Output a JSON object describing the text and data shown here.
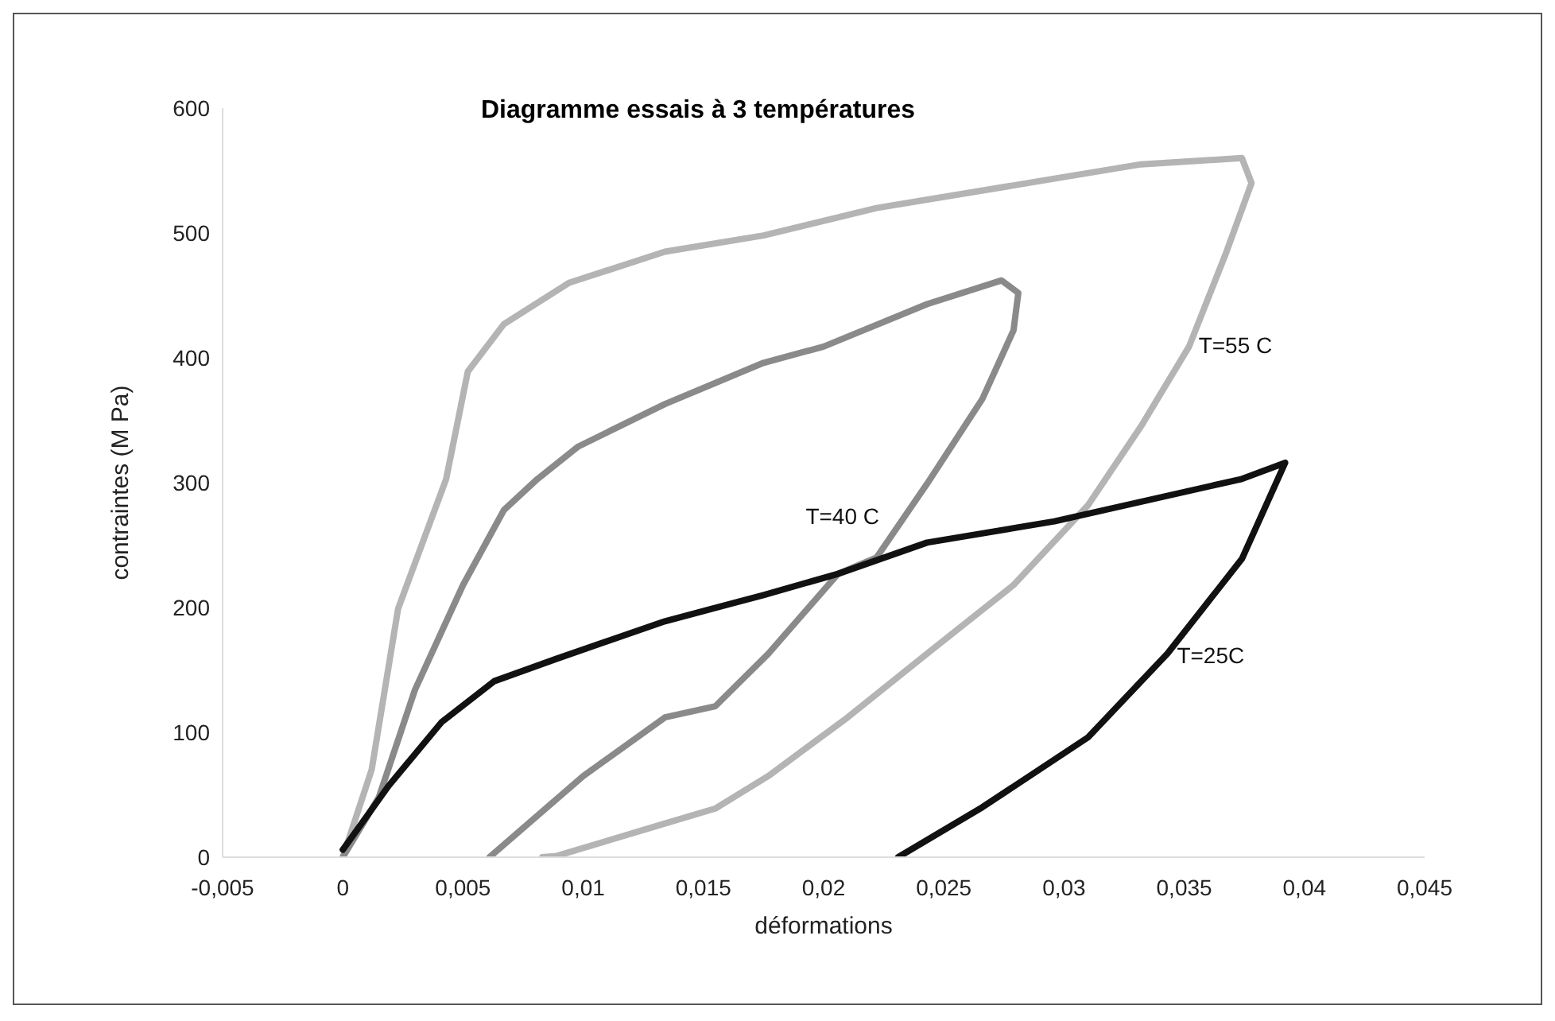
{
  "chart_data": {
    "type": "line",
    "title": "Diagramme essais à 3 températures",
    "xlabel": "déformations",
    "ylabel": "contraintes (M Pa)",
    "xlim": [
      -0.005,
      0.045
    ],
    "xticks": [
      {
        "value": -0.005,
        "label": "-0,005"
      },
      0,
      {
        "value": 0.005,
        "label": "0,005"
      },
      {
        "value": 0.01,
        "label": "0,01"
      },
      {
        "value": 0.015,
        "label": "0,015"
      },
      {
        "value": 0.02,
        "label": "0,02"
      },
      {
        "value": 0.025,
        "label": "0,025"
      },
      {
        "value": 0.03,
        "label": "0,03"
      },
      {
        "value": 0.035,
        "label": "0,035"
      },
      {
        "value": 0.04,
        "label": "0,04"
      },
      {
        "value": 0.045,
        "label": "0,045"
      }
    ],
    "ylim": [
      0,
      600
    ],
    "yticks": [
      0,
      100,
      200,
      300,
      400,
      500,
      600
    ],
    "grid": false,
    "legend": false,
    "marker": "none",
    "line_style": "solid",
    "series": [
      {
        "name": "T=55 C",
        "color": "#b4b4b4",
        "x": [
          0,
          0.0012,
          0.0023,
          0.0043,
          0.0052,
          0.0067,
          0.0094,
          0.0134,
          0.0175,
          0.0222,
          0.0288,
          0.0332,
          0.0374,
          0.0378,
          0.0367,
          0.0352,
          0.0332,
          0.031,
          0.0279,
          0.0243,
          0.021,
          0.0177,
          0.0155,
          0.0134,
          0.0089,
          0.0083
        ],
        "values": [
          0,
          70,
          199,
          303,
          389,
          427,
          460,
          485,
          498,
          520,
          541,
          555,
          560,
          540,
          482,
          409,
          345,
          282,
          218,
          163,
          112,
          65,
          39,
          27,
          1,
          0
        ]
      },
      {
        "name": "T=40 C",
        "color": "#8a8a8a",
        "x": [
          0,
          0.0015,
          0.003,
          0.005,
          0.0067,
          0.0081,
          0.0098,
          0.0134,
          0.0175,
          0.02,
          0.0243,
          0.0274,
          0.0281,
          0.0279,
          0.0266,
          0.0243,
          0.0222,
          0.0206,
          0.0177,
          0.0155,
          0.0134,
          0.01,
          0.0061
        ],
        "values": [
          0,
          48,
          134,
          218,
          278,
          303,
          329,
          363,
          396,
          409,
          443,
          462,
          452,
          422,
          367,
          299,
          240,
          227,
          163,
          121,
          112,
          65,
          0
        ]
      },
      {
        "name": "T=25C",
        "color": "#111111",
        "x": [
          0,
          0.0019,
          0.0041,
          0.0063,
          0.0089,
          0.0134,
          0.0175,
          0.0206,
          0.0243,
          0.0296,
          0.0374,
          0.0392,
          0.0374,
          0.0343,
          0.031,
          0.0266,
          0.0231
        ],
        "values": [
          6,
          57,
          108,
          141,
          159,
          189,
          210,
          227,
          252,
          269,
          303,
          316,
          239,
          163,
          96,
          40,
          0
        ]
      }
    ]
  }
}
